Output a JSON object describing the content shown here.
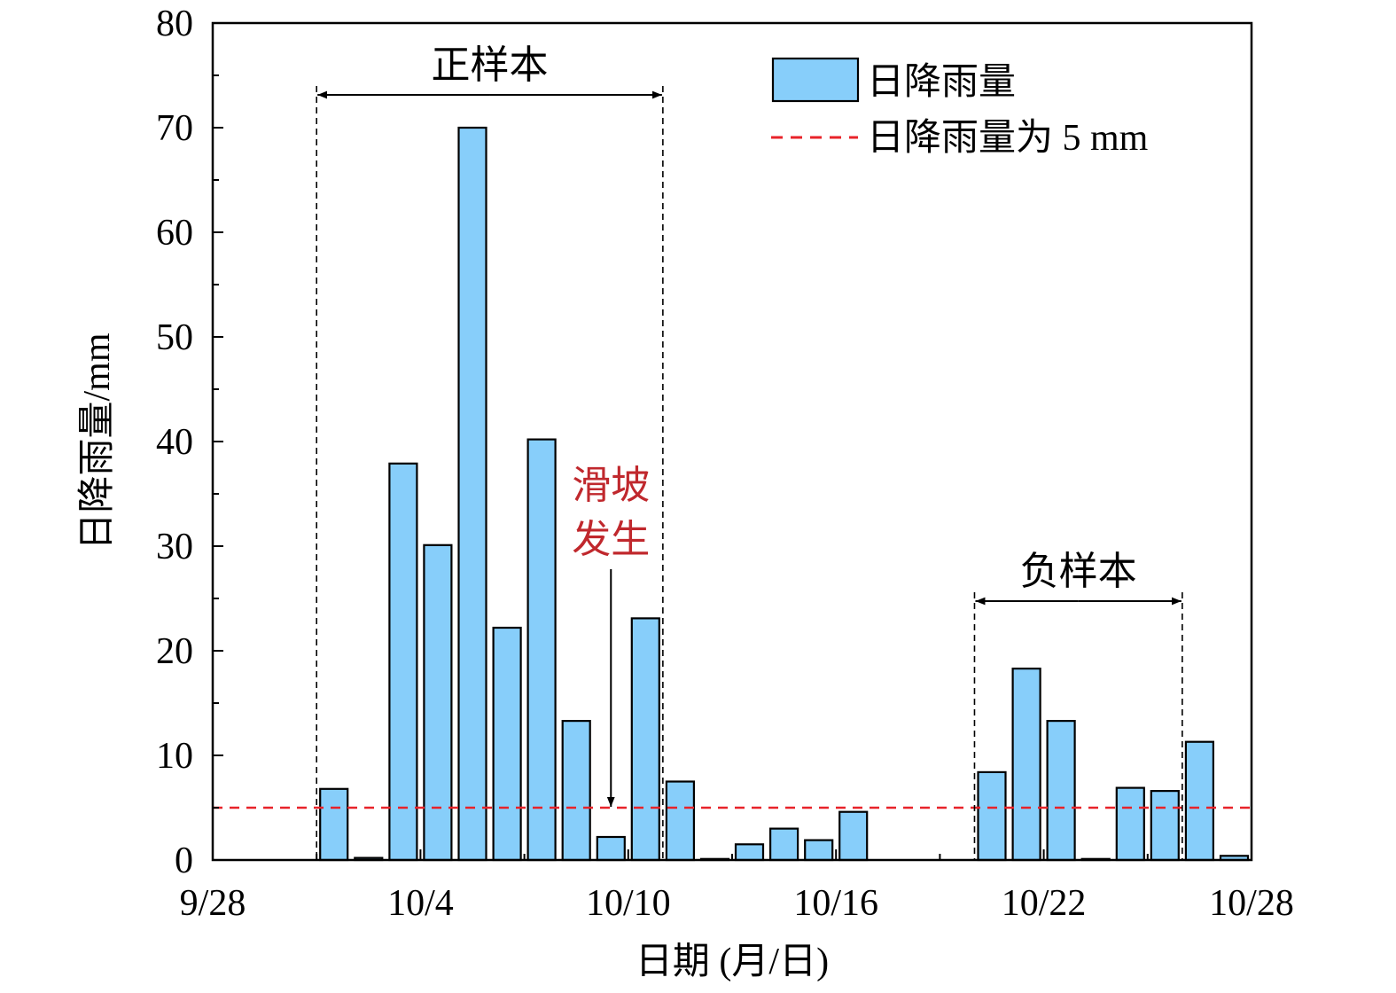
{
  "chart_data": {
    "type": "bar",
    "x_axis": {
      "label": "日期 (月/日)",
      "min": "9/28",
      "max": "10/28",
      "ticks": [
        "9/28",
        "10/4",
        "10/10",
        "10/16",
        "10/22",
        "10/28"
      ]
    },
    "y_axis": {
      "label": "日降雨量/mm",
      "ylim": [
        0,
        80
      ],
      "ticks": [
        0,
        10,
        20,
        30,
        40,
        50,
        60,
        70,
        80
      ]
    },
    "series": [
      {
        "name": "日降雨量",
        "color": "#87CEFA",
        "points": [
          {
            "date": "10/1",
            "value": 6.8
          },
          {
            "date": "10/2",
            "value": 0.2
          },
          {
            "date": "10/3",
            "value": 37.9
          },
          {
            "date": "10/4",
            "value": 30.1
          },
          {
            "date": "10/5",
            "value": 70.0
          },
          {
            "date": "10/6",
            "value": 22.2
          },
          {
            "date": "10/7",
            "value": 40.2
          },
          {
            "date": "10/8",
            "value": 13.3
          },
          {
            "date": "10/9",
            "value": 2.2
          },
          {
            "date": "10/10",
            "value": 23.1
          },
          {
            "date": "10/11",
            "value": 7.5
          },
          {
            "date": "10/12",
            "value": 0.1
          },
          {
            "date": "10/13",
            "value": 1.5
          },
          {
            "date": "10/14",
            "value": 3.0
          },
          {
            "date": "10/15",
            "value": 1.9
          },
          {
            "date": "10/16",
            "value": 4.6
          },
          {
            "date": "10/20",
            "value": 8.4
          },
          {
            "date": "10/21",
            "value": 18.3
          },
          {
            "date": "10/22",
            "value": 13.3
          },
          {
            "date": "10/23",
            "value": 0.1
          },
          {
            "date": "10/24",
            "value": 6.9
          },
          {
            "date": "10/25",
            "value": 6.6
          },
          {
            "date": "10/26",
            "value": 11.3
          },
          {
            "date": "10/27",
            "value": 0.4
          }
        ]
      }
    ],
    "reference_line": {
      "name": "日降雨量为 5 mm",
      "value": 5,
      "color": "#E8232A",
      "style": "dashed"
    },
    "legend": {
      "position": "top-right",
      "items": [
        "日降雨量",
        "日降雨量为 5 mm"
      ]
    },
    "annotations": {
      "positive_sample": {
        "label": "正样本",
        "from": "10/1",
        "to": "10/11"
      },
      "negative_sample": {
        "label": "负样本",
        "from": "10/20",
        "to": "10/26"
      },
      "landslide": {
        "label_line1": "滑坡",
        "label_line2": "发生",
        "date": "10/9",
        "color": "#C0282D"
      }
    }
  }
}
